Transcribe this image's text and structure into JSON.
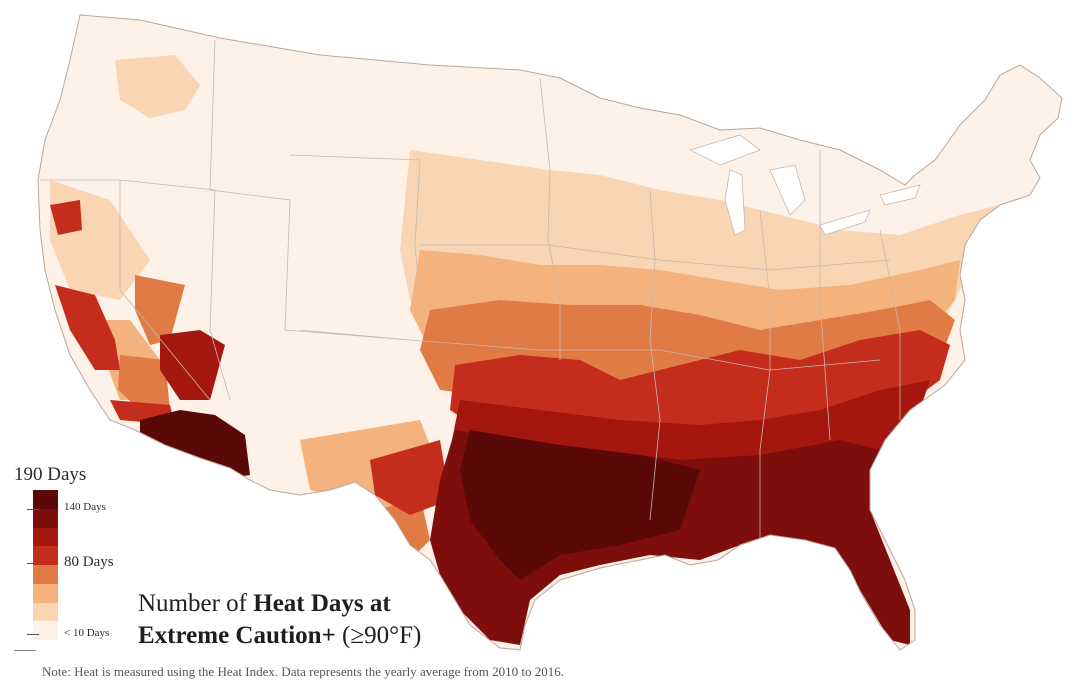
{
  "legend": {
    "title": "190 Days",
    "labels": [
      "140 Days",
      "80 Days",
      "< 10 Days"
    ],
    "colors": [
      "#5a0808",
      "#7d0e0b",
      "#a3170f",
      "#c42d1c",
      "#e07b45",
      "#f3b27e",
      "#f9d5b4",
      "#fdf1e8"
    ]
  },
  "map_title": {
    "part1": "Number of ",
    "bold1": "Heat Days at",
    "bold2": "Extreme Caution+",
    "part2": " (≥90°F)"
  },
  "footnote": "Note: Heat is measured using the Heat Index. Data represents the yearly average from 2010 to 2016."
}
